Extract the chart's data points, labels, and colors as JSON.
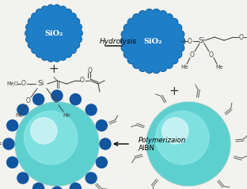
{
  "bg_color": "#f2f2ee",
  "sio2_color": "#1e7ec8",
  "sio2_dark": "#0e5a9a",
  "sio2_text": "SiO₂",
  "teal_main": "#5ecfcf",
  "teal_light": "#8ee8e8",
  "teal_white": "#d0f5f5",
  "teal_dark": "#3ab0b0",
  "dark_blue_ball": "#1255a0",
  "hydrolysis_label": "Hydrolysis",
  "polymerization_label": "Polymerizaion",
  "aibn_label": "AIBN",
  "plus_sign": "+",
  "line_color": "#444444",
  "arrow_color": "#333333"
}
